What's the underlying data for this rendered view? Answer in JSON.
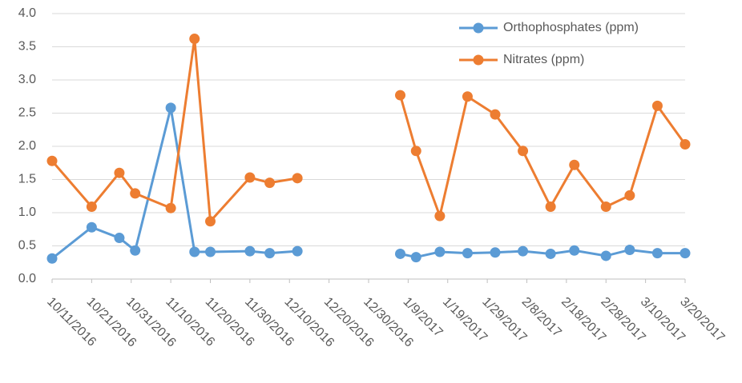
{
  "chart_data": {
    "type": "line",
    "x": [
      "2016-10-11",
      "2016-10-21",
      "2016-10-28",
      "2016-11-01",
      "2016-11-10",
      "2016-11-16",
      "2016-11-20",
      "2016-11-30",
      "2016-12-05",
      "2016-12-12",
      "2016-12-26",
      "2017-01-07",
      "2017-01-11",
      "2017-01-17",
      "2017-01-24",
      "2017-01-31",
      "2017-02-07",
      "2017-02-14",
      "2017-02-20",
      "2017-02-28",
      "2017-03-06",
      "2017-03-13",
      "2017-03-20"
    ],
    "series": [
      {
        "name": "Orthophosphates (ppm)",
        "color": "#5b9bd5",
        "values": [
          0.31,
          0.78,
          0.62,
          0.43,
          2.58,
          0.41,
          0.41,
          0.42,
          0.39,
          0.42,
          null,
          0.38,
          0.33,
          0.41,
          0.39,
          0.4,
          0.42,
          0.38,
          0.43,
          0.35,
          0.44,
          0.39,
          0.39
        ]
      },
      {
        "name": "Nitrates (ppm)",
        "color": "#ed7d31",
        "values": [
          1.78,
          1.09,
          1.6,
          1.29,
          1.07,
          3.62,
          0.87,
          1.53,
          1.45,
          1.52,
          null,
          2.77,
          1.93,
          0.95,
          2.75,
          2.48,
          1.93,
          1.09,
          1.72,
          1.09,
          1.26,
          2.61,
          2.03
        ]
      }
    ],
    "xlim": [
      "2016-10-11",
      "2017-03-20"
    ],
    "xticks": [
      {
        "value": "2016-10-11",
        "label": "10/11/2016"
      },
      {
        "value": "2016-10-21",
        "label": "10/21/2016"
      },
      {
        "value": "2016-10-31",
        "label": "10/31/2016"
      },
      {
        "value": "2016-11-10",
        "label": "11/10/2016"
      },
      {
        "value": "2016-11-20",
        "label": "11/20/2016"
      },
      {
        "value": "2016-11-30",
        "label": "11/30/2016"
      },
      {
        "value": "2016-12-10",
        "label": "12/10/2016"
      },
      {
        "value": "2016-12-20",
        "label": "12/20/2016"
      },
      {
        "value": "2016-12-30",
        "label": "12/30/2016"
      },
      {
        "value": "2017-01-09",
        "label": "1/9/2017"
      },
      {
        "value": "2017-01-19",
        "label": "1/19/2017"
      },
      {
        "value": "2017-01-29",
        "label": "1/29/2017"
      },
      {
        "value": "2017-02-08",
        "label": "2/8/2017"
      },
      {
        "value": "2017-02-18",
        "label": "2/18/2017"
      },
      {
        "value": "2017-02-28",
        "label": "2/28/2017"
      },
      {
        "value": "2017-03-10",
        "label": "3/10/2017"
      },
      {
        "value": "2017-03-20",
        "label": "3/20/2017"
      }
    ],
    "ylim": [
      0,
      4
    ],
    "yticks": [
      {
        "value": 0,
        "label": "0.0"
      },
      {
        "value": 0.5,
        "label": "0.5"
      },
      {
        "value": 1,
        "label": "1.0"
      },
      {
        "value": 1.5,
        "label": "1.5"
      },
      {
        "value": 2,
        "label": "2.0"
      },
      {
        "value": 2.5,
        "label": "2.5"
      },
      {
        "value": 3,
        "label": "3.0"
      },
      {
        "value": 3.5,
        "label": "3.5"
      },
      {
        "value": 4,
        "label": "4.0"
      }
    ],
    "grid": true,
    "legend": "top-right"
  }
}
